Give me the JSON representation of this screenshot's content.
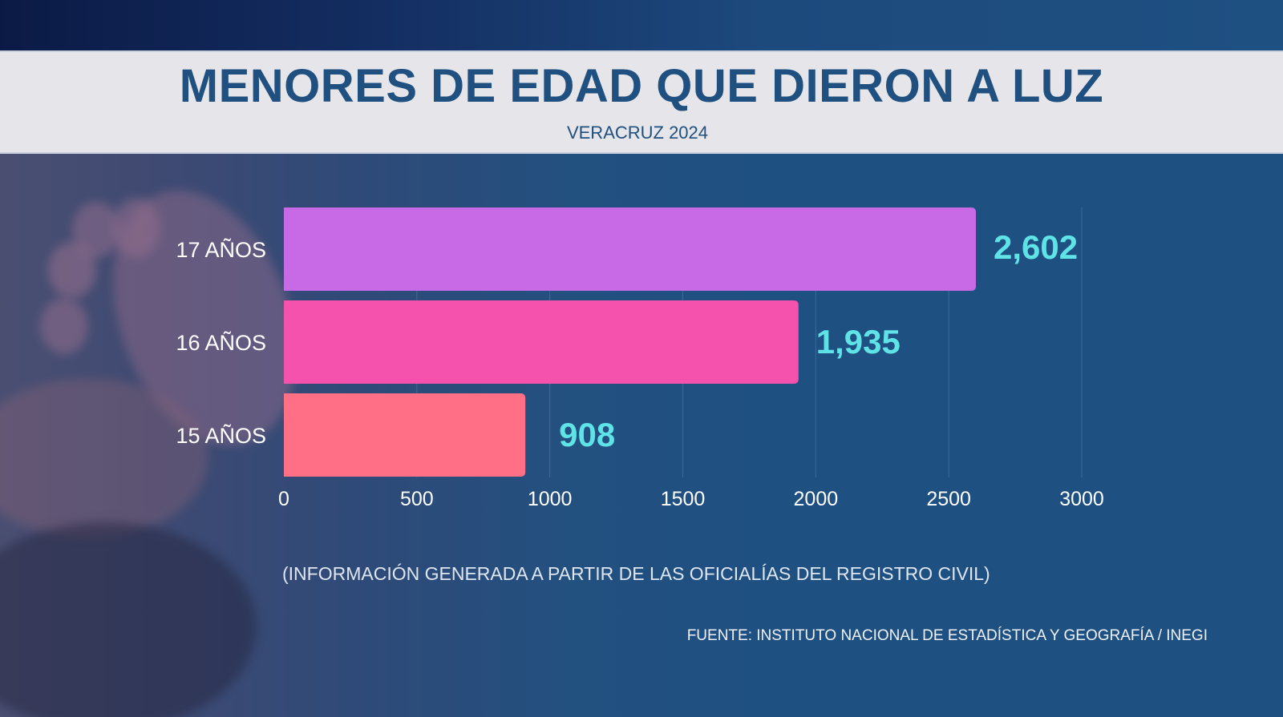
{
  "header": {
    "title": "MENORES DE EDAD QUE DIERON A LUZ",
    "subtitle": "VERACRUZ 2024"
  },
  "footer": {
    "note": "(INFORMACIÓN GENERADA A PARTIR DE LAS OFICIALÍAS DEL REGISTRO CIVIL)",
    "source": "FUENTE: INSTITUTO NACIONAL DE ESTADÍSTICA Y GEOGRAFÍA / INEGI"
  },
  "background": {
    "image": "baby-feet-photo"
  },
  "chart_data": {
    "type": "bar",
    "orientation": "horizontal",
    "title": "MENORES DE EDAD QUE DIERON A LUZ",
    "subtitle": "VERACRUZ 2024",
    "categories": [
      "17 AÑOS",
      "16 AÑOS",
      "15 AÑOS"
    ],
    "values": [
      2602,
      1935,
      908
    ],
    "value_labels": [
      "2,602",
      "1,935",
      "908"
    ],
    "colors": [
      "#c86ae6",
      "#f452ac",
      "#ff6f86"
    ],
    "value_label_color": "#5fe3e6",
    "xlim": [
      0,
      3000
    ],
    "xticks": [
      0,
      500,
      1000,
      1500,
      2000,
      2500,
      3000
    ],
    "xtick_labels": [
      "0",
      "500",
      "1000",
      "1500",
      "2000",
      "2500",
      "3000"
    ],
    "xlabel": "",
    "ylabel": "",
    "grid": true,
    "legend": "none"
  }
}
